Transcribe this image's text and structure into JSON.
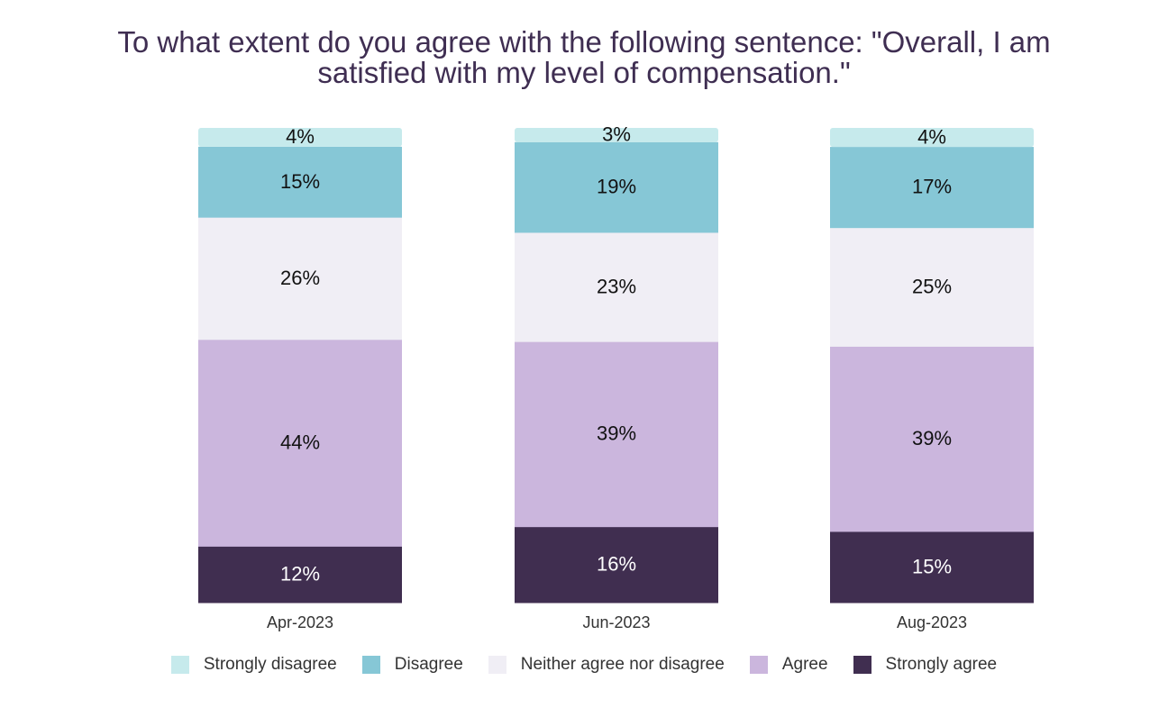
{
  "chart_data": {
    "type": "bar",
    "stacked": true,
    "title_lines": [
      "To what extent do you agree with the following sentence: \"Overall, I am",
      "satisfied with my level of compensation.\""
    ],
    "categories": [
      "Apr-2023",
      "Jun-2023",
      "Aug-2023"
    ],
    "series": [
      {
        "name": "Strongly agree",
        "color": "#402e50",
        "label_color": "#ffffff",
        "values": [
          12,
          16,
          15
        ]
      },
      {
        "name": "Agree",
        "color": "#cbb6dd",
        "label_color": "#111111",
        "values": [
          44,
          39,
          39
        ]
      },
      {
        "name": "Neither agree nor disagree",
        "color": "#f0eef5",
        "label_color": "#111111",
        "values": [
          26,
          23,
          25
        ]
      },
      {
        "name": "Disagree",
        "color": "#86c7d6",
        "label_color": "#111111",
        "values": [
          15,
          19,
          17
        ]
      },
      {
        "name": "Strongly disagree",
        "color": "#c6eaec",
        "label_color": "#111111",
        "values": [
          4,
          3,
          4
        ]
      }
    ],
    "value_format": "%",
    "legend_order": [
      "Strongly disagree",
      "Disagree",
      "Neither agree nor disagree",
      "Agree",
      "Strongly agree"
    ],
    "legend_position": "bottom",
    "grid": false
  }
}
